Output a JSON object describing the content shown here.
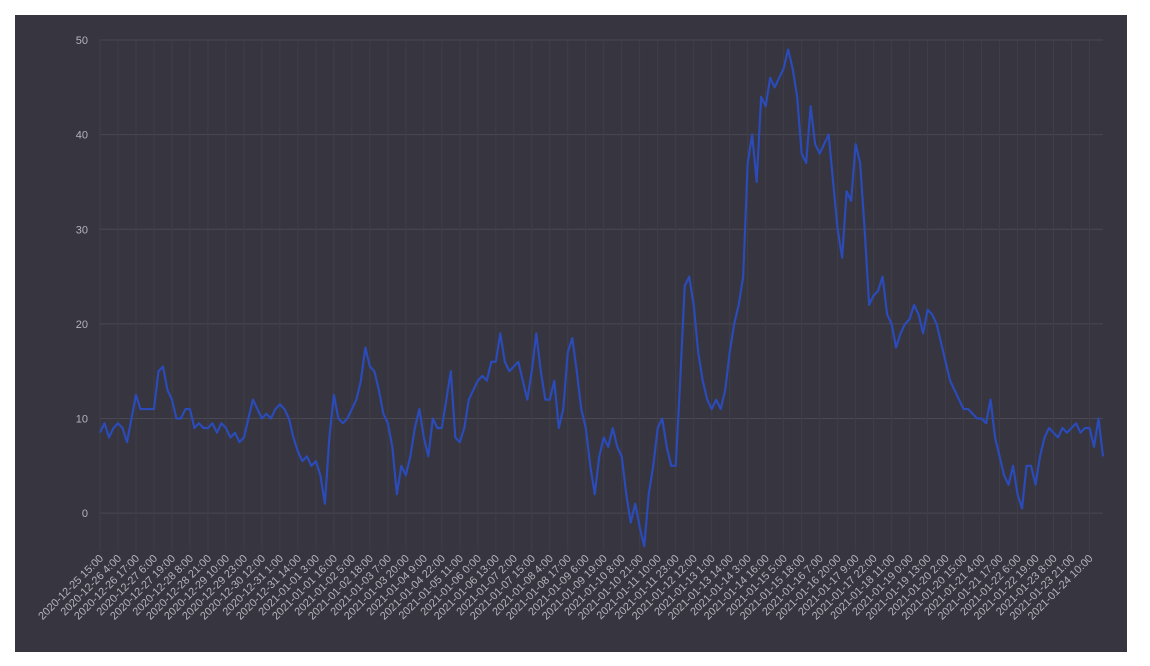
{
  "chart_data": {
    "type": "line",
    "categories": [
      "2020-12-25 15:00",
      null,
      null,
      null,
      "2020-12-26 4:00",
      null,
      null,
      null,
      "2020-12-26 17:00",
      null,
      null,
      null,
      "2020-12-27 6:00",
      null,
      null,
      null,
      "2020-12-27 19:00",
      null,
      null,
      null,
      "2020-12-28 8:00",
      null,
      null,
      null,
      "2020-12-28 21:00",
      null,
      null,
      null,
      "2020-12-29 10:00",
      null,
      null,
      null,
      "2020-12-29 23:00",
      null,
      null,
      null,
      "2020-12-30 12:00",
      null,
      null,
      null,
      "2020-12-31 1:00",
      null,
      null,
      null,
      "2020-12-31 14:00",
      null,
      null,
      null,
      "2021-01-01 3:00",
      null,
      null,
      null,
      "2021-01-01 16:00",
      null,
      null,
      null,
      "2021-01-02 5:00",
      null,
      null,
      null,
      "2021-01-02 18:00",
      null,
      null,
      null,
      "2021-01-03 7:00",
      null,
      null,
      null,
      "2021-01-03 20:00",
      null,
      null,
      null,
      "2021-01-04 9:00",
      null,
      null,
      null,
      "2021-01-04 22:00",
      null,
      null,
      null,
      "2021-01-05 11:00",
      null,
      null,
      null,
      "2021-01-06 0:00",
      null,
      null,
      null,
      "2021-01-06 13:00",
      null,
      null,
      null,
      "2021-01-07 2:00",
      null,
      null,
      null,
      "2021-01-07 15:00",
      null,
      null,
      null,
      "2021-01-08 4:00",
      null,
      null,
      null,
      "2021-01-08 17:00",
      null,
      null,
      null,
      "2021-01-09 6:00",
      null,
      null,
      null,
      "2021-01-09 19:00",
      null,
      null,
      null,
      "2021-01-10 8:00",
      null,
      null,
      null,
      "2021-01-10 21:00",
      null,
      null,
      null,
      "2021-01-11 10:00",
      null,
      null,
      null,
      "2021-01-11 23:00",
      null,
      null,
      null,
      "2021-01-12 12:00",
      null,
      null,
      null,
      "2021-01-13 1:00",
      null,
      null,
      null,
      "2021-01-13 14:00",
      null,
      null,
      null,
      "2021-01-14 3:00",
      null,
      null,
      null,
      "2021-01-14 16:00",
      null,
      null,
      null,
      "2021-01-15 5:00",
      null,
      null,
      null,
      "2021-01-15 18:00",
      null,
      null,
      null,
      "2021-01-16 7:00",
      null,
      null,
      null,
      "2021-01-16 20:00",
      null,
      null,
      null,
      "2021-01-17 9:00",
      null,
      null,
      null,
      "2021-01-17 22:00",
      null,
      null,
      null,
      "2021-01-18 11:00",
      null,
      null,
      null,
      "2021-01-19 0:00",
      null,
      null,
      null,
      "2021-01-19 13:00",
      null,
      null,
      null,
      "2021-01-20 2:00",
      null,
      null,
      null,
      "2021-01-20 15:00",
      null,
      null,
      null,
      "2021-01-21 4:00",
      null,
      null,
      null,
      "2021-01-21 17:00",
      null,
      null,
      null,
      "2021-01-22 6:00",
      null,
      null,
      null,
      "2021-01-22 19:00",
      null,
      null,
      null,
      "2021-01-23 8:00",
      null,
      null,
      null,
      "2021-01-23 21:00",
      null,
      null,
      null,
      "2021-01-24 10:00",
      null,
      null,
      null
    ],
    "series": [
      {
        "color": "#2a4bb8",
        "values": [
          8.5,
          9.5,
          8,
          9,
          9.5,
          9,
          7.5,
          10,
          12.5,
          11,
          11,
          11,
          11,
          15,
          15.5,
          13,
          12,
          10,
          10,
          11,
          11,
          9,
          9.5,
          9,
          9,
          9.5,
          8.5,
          9.5,
          9,
          8,
          8.5,
          7.5,
          8,
          10,
          12,
          11,
          10,
          10.5,
          10,
          11,
          11.5,
          11,
          10,
          8,
          6.5,
          5.5,
          6,
          5,
          5.5,
          4,
          1,
          8,
          12.5,
          10,
          9.5,
          10,
          11,
          12,
          14,
          17.5,
          15.5,
          15,
          13,
          10.5,
          9.5,
          7,
          2,
          5,
          4,
          6,
          9,
          11,
          8,
          6,
          10,
          9,
          9,
          12,
          15,
          8,
          7.5,
          9,
          12,
          13,
          14,
          14.5,
          14,
          16,
          16,
          19,
          16,
          15,
          15.5,
          16,
          14,
          12,
          15,
          19,
          15,
          12,
          12,
          14,
          9,
          11,
          17,
          18.5,
          15,
          11,
          9,
          5,
          2,
          6,
          8,
          7,
          9,
          7,
          6,
          2,
          -1,
          1,
          -1.5,
          -3.5,
          2,
          5,
          9,
          10,
          7,
          5,
          5,
          14,
          24,
          25,
          22,
          17,
          14,
          12,
          11,
          12,
          11,
          13,
          17,
          20,
          22,
          25,
          37,
          40,
          35,
          44,
          43,
          46,
          45,
          46,
          47,
          49,
          47,
          44,
          38,
          37,
          43,
          39,
          38,
          39,
          40,
          35,
          30,
          27,
          34,
          33,
          39,
          37,
          30,
          22,
          23,
          23.5,
          25,
          21,
          20,
          17.5,
          19,
          20,
          20.5,
          22,
          21,
          19,
          21.5,
          21,
          20,
          18,
          16,
          14,
          13,
          12,
          11,
          11,
          10.5,
          10,
          10,
          9.5,
          12,
          8,
          6,
          4,
          3,
          5,
          2,
          0.5,
          5,
          5,
          3,
          6,
          8,
          9,
          8.5,
          8,
          9,
          8.5,
          9,
          9.5,
          8.5,
          9,
          9,
          7,
          10,
          6
        ]
      }
    ],
    "ylim": [
      -4,
      50
    ],
    "yticks": [
      0,
      10,
      20,
      30,
      40,
      50
    ],
    "grid": true
  }
}
